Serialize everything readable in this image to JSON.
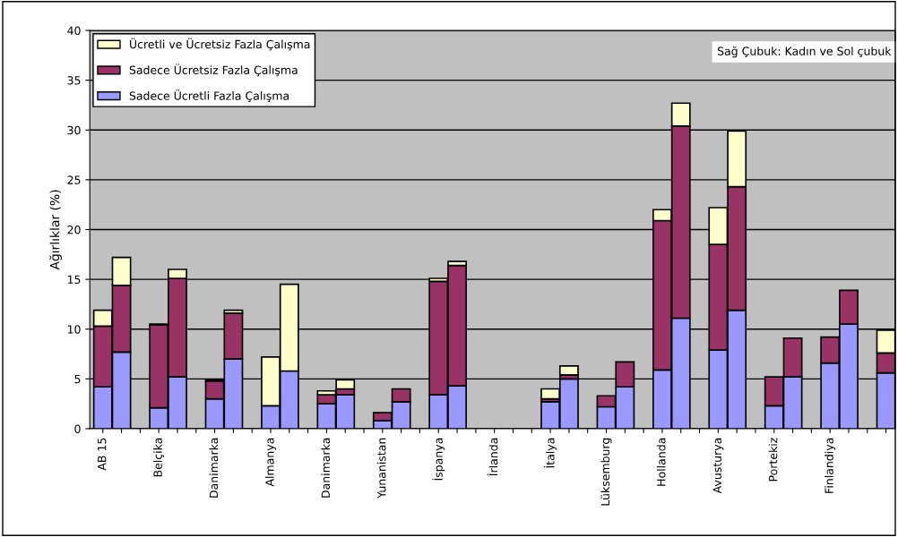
{
  "chart_data": {
    "type": "bar",
    "stacked": true,
    "ylabel": "Ağırlıklar (%)",
    "annotations": [
      "Sağ Çubuk: Kadın ve Sol çubuk"
    ],
    "categories": [
      "AB 15",
      null,
      null,
      "Belçika",
      null,
      null,
      "Danimarka",
      null,
      null,
      "Almanya",
      null,
      null,
      "Danimarka",
      null,
      null,
      "Yunanistan",
      null,
      null,
      "İspanya",
      null,
      null,
      "İrlanda",
      null,
      null,
      "İtalya",
      null,
      null,
      "Lüksemburg",
      null,
      null,
      "Hollanda",
      null,
      null,
      "Avusturya",
      null,
      null,
      "Portekiz",
      null,
      null,
      "Finlandiya",
      null,
      null,
      null
    ],
    "series": [
      {
        "name": "Sadece Ücretli Fazla Çalışma",
        "color": "#9999ff",
        "values": [
          4.2,
          7.7,
          null,
          2.1,
          5.2,
          null,
          3.0,
          7.0,
          null,
          2.3,
          5.8,
          null,
          2.5,
          3.4,
          null,
          0.8,
          2.7,
          null,
          3.4,
          4.3,
          null,
          null,
          null,
          null,
          2.7,
          5.0,
          null,
          2.2,
          4.2,
          null,
          5.9,
          11.1,
          null,
          7.9,
          11.9,
          null,
          2.3,
          5.2,
          null,
          6.6,
          10.5,
          null,
          5.6
        ]
      },
      {
        "name": "Sadece Ücretsiz Fazla Çalışma",
        "color": "#993366",
        "values": [
          6.1,
          6.7,
          null,
          8.3,
          9.9,
          null,
          1.8,
          4.6,
          null,
          null,
          null,
          null,
          0.9,
          0.6,
          null,
          0.8,
          1.3,
          null,
          11.4,
          12.1,
          null,
          null,
          null,
          null,
          0.3,
          0.4,
          null,
          1.1,
          2.5,
          null,
          15.0,
          19.3,
          null,
          10.6,
          12.4,
          null,
          2.9,
          3.9,
          null,
          2.6,
          3.4,
          null,
          2.0
        ]
      },
      {
        "name": "Ücretli ve Ücretsiz Fazla Çalışma",
        "color": "#ffffcc",
        "values": [
          1.6,
          2.8,
          null,
          0.1,
          0.9,
          null,
          0.1,
          0.3,
          null,
          4.9,
          8.7,
          null,
          0.4,
          0.9,
          null,
          null,
          null,
          null,
          0.3,
          0.4,
          null,
          null,
          null,
          null,
          1.0,
          0.9,
          null,
          null,
          null,
          null,
          1.1,
          2.3,
          null,
          3.7,
          5.6,
          null,
          null,
          null,
          null,
          null,
          null,
          null,
          2.3
        ]
      }
    ],
    "ylim": [
      0,
      40
    ],
    "yticks": [
      0,
      5,
      10,
      15,
      20,
      25,
      30,
      35,
      40
    ],
    "grid": "y",
    "legend": "top left"
  }
}
